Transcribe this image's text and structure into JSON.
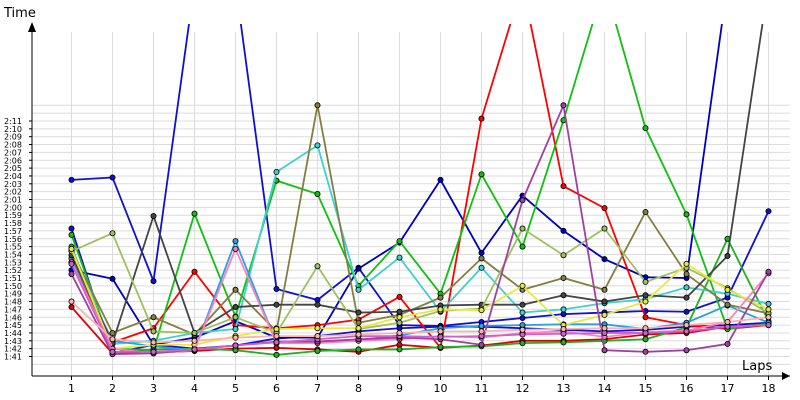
{
  "chart_data": {
    "type": "line",
    "ylabel": "Time",
    "xlabel": "Laps",
    "x": [
      1,
      2,
      3,
      4,
      5,
      6,
      7,
      8,
      9,
      10,
      11,
      12,
      13,
      14,
      15,
      16,
      17,
      18
    ],
    "y_unit": "seconds",
    "ylim": [
      99,
      133
    ],
    "grid": true,
    "y_ticks": [
      "1:41",
      "1:42",
      "1:43",
      "1:44",
      "1:45",
      "1:46",
      "1:47",
      "1:48",
      "1:49",
      "1:50",
      "1:51",
      "1:52",
      "1:53",
      "1:54",
      "1:55",
      "1:56",
      "1:57",
      "1:58",
      "1:59",
      "2:00",
      "2:01",
      "2:02",
      "2:03",
      "2:04",
      "2:05",
      "2:06",
      "2:07",
      "2:08",
      "2:09",
      "2:10",
      "2:11"
    ],
    "series": [
      {
        "color": "#1010d0",
        "values": [
          123.5,
          123.8,
          110.6,
          null,
          null,
          109.6,
          108.2,
          112.3,
          105.0,
          104.9,
          105.4,
          105.9,
          106.4,
          106.6,
          106.8,
          106.7,
          108.5,
          119.5
        ]
      },
      {
        "color": "#1010d0",
        "values": [
          117.3,
          101.4,
          102.5,
          102.0,
          102.4,
          103.3,
          103.6,
          104.2,
          104.6,
          104.8,
          104.8,
          104.6,
          104.4,
          104.2,
          104.4,
          104.8,
          105.0,
          105.3
        ]
      },
      {
        "color": "#0000c0",
        "values": [
          112.0,
          110.9,
          102.5,
          103.4,
          105.5,
          103.4,
          103.4,
          112.2,
          115.5,
          123.5,
          114.2,
          121.5,
          117.0,
          113.4,
          111.1,
          111.0,
          null,
          null
        ]
      },
      {
        "color": "#ff0000",
        "values": [
          113.0,
          102.8,
          104.6,
          111.8,
          105.0,
          104.6,
          105.0,
          105.7,
          108.6,
          102.1,
          131.3,
          null,
          122.7,
          119.9,
          106.0,
          105.0,
          104.5,
          105.0
        ]
      },
      {
        "color": "#dd0000",
        "values": [
          107.3,
          101.4,
          101.5,
          101.7,
          102.0,
          102.1,
          101.9,
          101.6,
          102.5,
          102.1,
          102.4,
          103.0,
          103.0,
          103.2,
          103.8,
          104.0,
          104.8,
          105.0
        ]
      },
      {
        "color": "#10c010",
        "values": [
          116.5,
          102.0,
          101.8,
          119.2,
          106.1,
          123.4,
          121.7,
          110.0,
          115.7,
          109.0,
          124.2,
          115.0,
          131.1,
          null,
          130.1,
          119.1,
          104.5,
          105.2
        ]
      },
      {
        "color": "#20b020",
        "values": [
          115.0,
          101.5,
          101.9,
          102.0,
          101.8,
          101.2,
          101.7,
          101.9,
          101.9,
          102.2,
          102.3,
          102.7,
          102.8,
          103.0,
          103.2,
          104.7,
          116.0,
          105.5
        ]
      },
      {
        "color": "#40d0d0",
        "values": [
          114.7,
          102.6,
          103.0,
          104.0,
          104.5,
          124.5,
          127.9,
          109.5,
          113.6,
          106.7,
          112.3,
          106.6,
          107.0,
          107.8,
          108.3,
          109.8,
          109.0,
          107.7
        ]
      },
      {
        "color": "#2aa0e0",
        "values": [
          113.5,
          103.0,
          102.3,
          101.8,
          115.7,
          102.7,
          102.9,
          103.1,
          103.7,
          104.6,
          104.9,
          105.0,
          105.1,
          105.1,
          104.5,
          105.3,
          107.5,
          105.3
        ]
      },
      {
        "color": "#808040",
        "values": [
          114.5,
          104.0,
          106.0,
          103.8,
          109.5,
          104.2,
          133.0,
          105.3,
          106.3,
          108.5,
          113.5,
          109.5,
          111.0,
          109.5,
          119.4,
          111.5,
          107.6,
          106.5
        ]
      },
      {
        "color": "#444444",
        "values": [
          113.9,
          102.7,
          118.9,
          104.0,
          107.3,
          107.6,
          107.6,
          106.6,
          106.7,
          107.5,
          107.6,
          107.6,
          108.8,
          108.0,
          108.8,
          108.5,
          113.8,
          null
        ]
      },
      {
        "color": "#a0c060",
        "values": [
          114.4,
          116.7,
          104.2,
          104.0,
          106.0,
          104.0,
          112.5,
          104.5,
          105.3,
          106.8,
          107.1,
          117.3,
          113.9,
          117.3,
          110.5,
          112.3,
          109.7,
          106.5
        ]
      },
      {
        "color": "#e8e840",
        "values": [
          114.7,
          102.0,
          102.5,
          102.5,
          103.6,
          104.5,
          104.6,
          104.6,
          106.0,
          107.0,
          106.9,
          110.0,
          105.0,
          106.3,
          108.0,
          112.8,
          109.5,
          107.0
        ]
      },
      {
        "color": "#ff80c0",
        "values": [
          113.0,
          102.0,
          101.4,
          101.8,
          114.7,
          102.7,
          102.7,
          103.0,
          103.2,
          103.6,
          103.4,
          104.0,
          104.2,
          103.5,
          104.1,
          104.3,
          105.4,
          111.6
        ]
      },
      {
        "color": "#a040a0",
        "values": [
          111.5,
          101.3,
          101.4,
          101.9,
          102.4,
          102.9,
          102.9,
          103.2,
          103.4,
          103.2,
          102.5,
          120.9,
          133.0,
          101.8,
          101.6,
          101.8,
          102.6,
          111.8
        ]
      },
      {
        "color": "#cc60cc",
        "values": [
          112.8,
          101.6,
          101.6,
          101.9,
          102.4,
          102.8,
          103.2,
          103.6,
          103.6,
          103.5,
          103.6,
          103.8,
          103.9,
          104.0,
          104.0,
          104.2,
          104.8,
          105.0
        ]
      },
      {
        "color": "#ffb0b0",
        "values": [
          108.0,
          103.2,
          102.8,
          103.0,
          103.4,
          103.6,
          103.6,
          103.8,
          104.0,
          104.2,
          104.2,
          104.4,
          104.5,
          104.6,
          104.6,
          105.0,
          105.4,
          106.0
        ]
      }
    ]
  }
}
